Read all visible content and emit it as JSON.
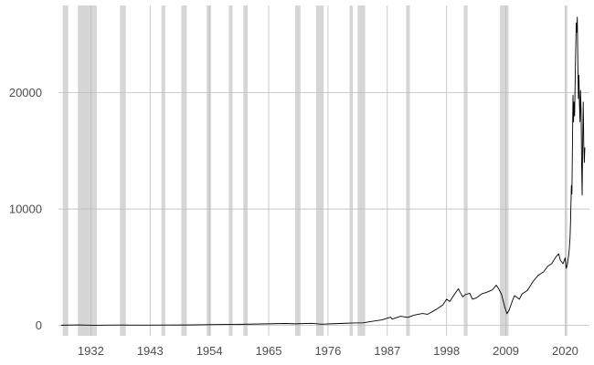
{
  "chart_data": {
    "type": "line",
    "title": "",
    "xlabel": "",
    "ylabel": "",
    "xlim": [
      1926.0,
      2024.5
    ],
    "ylim": [
      -900,
      27500
    ],
    "x_ticks": [
      {
        "value": 1932,
        "label": "1932"
      },
      {
        "value": 1943,
        "label": "1943"
      },
      {
        "value": 1954,
        "label": "1954"
      },
      {
        "value": 1965,
        "label": "1965"
      },
      {
        "value": 1976,
        "label": "1976"
      },
      {
        "value": 1987,
        "label": "1987"
      },
      {
        "value": 1998,
        "label": "1998"
      },
      {
        "value": 2009,
        "label": "2009"
      },
      {
        "value": 2020,
        "label": "2020"
      }
    ],
    "y_ticks": [
      {
        "value": 0,
        "label": "0"
      },
      {
        "value": 10000,
        "label": "10000"
      },
      {
        "value": 20000,
        "label": "20000"
      }
    ],
    "grid": true,
    "shaded_periods": [
      [
        1926.8,
        1927.8
      ],
      [
        1929.6,
        1933.1
      ],
      [
        1937.4,
        1938.5
      ],
      [
        1945.1,
        1945.8
      ],
      [
        1948.8,
        1949.8
      ],
      [
        1953.5,
        1954.3
      ],
      [
        1957.6,
        1958.3
      ],
      [
        1960.3,
        1961.1
      ],
      [
        1969.9,
        1970.9
      ],
      [
        1973.8,
        1975.2
      ],
      [
        1980.0,
        1980.6
      ],
      [
        1981.5,
        1982.9
      ],
      [
        1990.5,
        1991.2
      ],
      [
        2001.2,
        2001.9
      ],
      [
        2007.9,
        2009.5
      ],
      [
        2020.1,
        2020.4
      ]
    ],
    "series": [
      {
        "name": "",
        "points": [
          [
            1926.5,
            12
          ],
          [
            1929.6,
            38
          ],
          [
            1932.5,
            8
          ],
          [
            1937.0,
            25
          ],
          [
            1942.0,
            15
          ],
          [
            1946.0,
            30
          ],
          [
            1950.0,
            32
          ],
          [
            1955.0,
            70
          ],
          [
            1960.0,
            90
          ],
          [
            1965.0,
            130
          ],
          [
            1968.0,
            160
          ],
          [
            1970.0,
            130
          ],
          [
            1973.0,
            170
          ],
          [
            1974.8,
            95
          ],
          [
            1977.0,
            140
          ],
          [
            1980.0,
            190
          ],
          [
            1982.5,
            210
          ],
          [
            1984.0,
            330
          ],
          [
            1986.0,
            470
          ],
          [
            1987.6,
            700
          ],
          [
            1987.9,
            540
          ],
          [
            1989.5,
            780
          ],
          [
            1990.8,
            680
          ],
          [
            1992.0,
            880
          ],
          [
            1993.5,
            1020
          ],
          [
            1994.5,
            950
          ],
          [
            1996.0,
            1350
          ],
          [
            1997.3,
            1750
          ],
          [
            1998.0,
            2250
          ],
          [
            1998.6,
            2050
          ],
          [
            1999.5,
            2700
          ],
          [
            2000.2,
            3150
          ],
          [
            2000.5,
            2850
          ],
          [
            2001.0,
            2450
          ],
          [
            2001.5,
            2650
          ],
          [
            2002.3,
            2750
          ],
          [
            2002.8,
            2250
          ],
          [
            2003.5,
            2350
          ],
          [
            2004.5,
            2700
          ],
          [
            2005.5,
            2850
          ],
          [
            2006.5,
            3050
          ],
          [
            2007.2,
            3450
          ],
          [
            2007.6,
            3200
          ],
          [
            2008.2,
            2650
          ],
          [
            2008.8,
            1550
          ],
          [
            2009.2,
            1000
          ],
          [
            2009.6,
            1300
          ],
          [
            2010.2,
            2100
          ],
          [
            2010.6,
            2550
          ],
          [
            2011.5,
            2250
          ],
          [
            2012.0,
            2700
          ],
          [
            2013.0,
            3000
          ],
          [
            2014.0,
            3750
          ],
          [
            2015.0,
            4300
          ],
          [
            2016.0,
            4600
          ],
          [
            2016.8,
            5100
          ],
          [
            2017.5,
            5300
          ],
          [
            2018.3,
            5900
          ],
          [
            2018.8,
            6150
          ],
          [
            2019.1,
            5600
          ],
          [
            2019.6,
            5300
          ],
          [
            2020.0,
            5800
          ],
          [
            2020.2,
            4900
          ],
          [
            2020.4,
            5200
          ],
          [
            2020.7,
            6200
          ],
          [
            2020.9,
            7500
          ],
          [
            2021.0,
            9000
          ],
          [
            2021.15,
            12000
          ],
          [
            2021.25,
            11300
          ],
          [
            2021.35,
            15500
          ],
          [
            2021.45,
            19800
          ],
          [
            2021.55,
            17500
          ],
          [
            2021.65,
            19200
          ],
          [
            2021.75,
            18000
          ],
          [
            2021.85,
            21000
          ],
          [
            2021.95,
            23500
          ],
          [
            2022.05,
            26000
          ],
          [
            2022.15,
            25200
          ],
          [
            2022.25,
            26500
          ],
          [
            2022.35,
            22500
          ],
          [
            2022.45,
            19500
          ],
          [
            2022.55,
            21500
          ],
          [
            2022.65,
            19000
          ],
          [
            2022.75,
            17500
          ],
          [
            2022.85,
            20200
          ],
          [
            2022.95,
            18500
          ],
          [
            2023.05,
            14000
          ],
          [
            2023.15,
            11200
          ],
          [
            2023.25,
            16000
          ],
          [
            2023.35,
            19200
          ],
          [
            2023.45,
            15500
          ],
          [
            2023.55,
            14000
          ],
          [
            2023.65,
            15300
          ]
        ]
      }
    ]
  }
}
